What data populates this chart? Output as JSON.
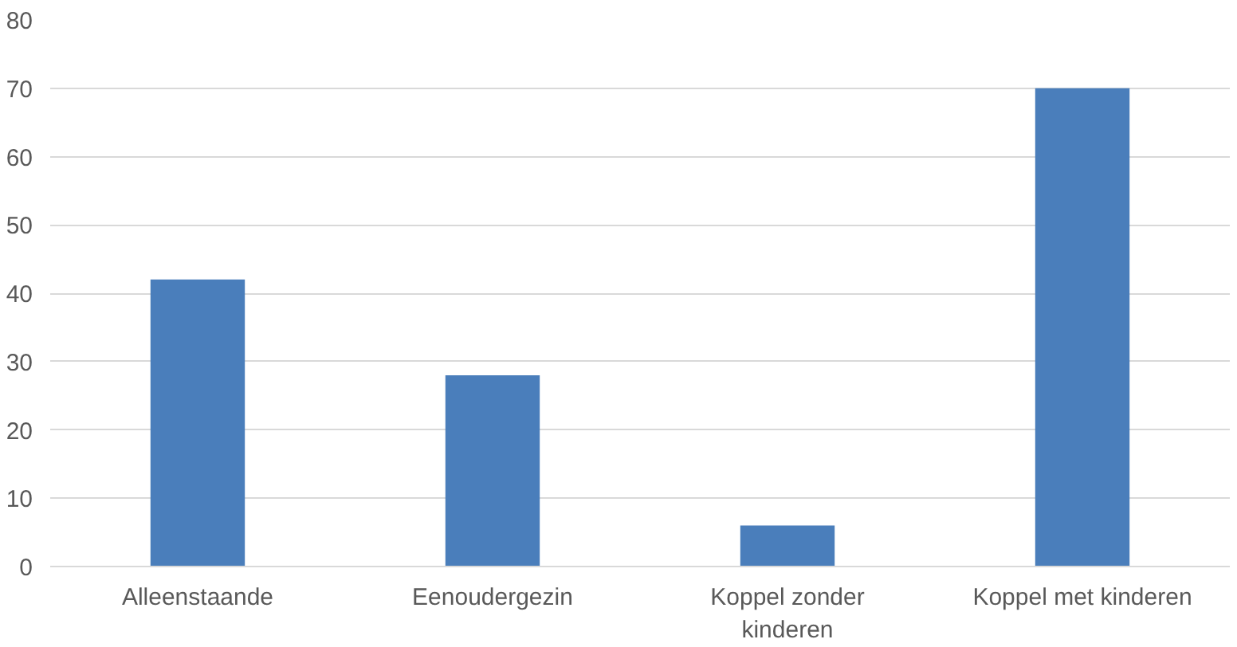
{
  "chart_data": {
    "type": "bar",
    "categories": [
      "Alleenstaande",
      "Eenoudergezin",
      "Koppel zonder kinderen",
      "Koppel met kinderen"
    ],
    "values": [
      42,
      28,
      6,
      70
    ],
    "color": "#4a7ebb",
    "ylim": [
      0,
      80
    ],
    "yticks": [
      0,
      10,
      20,
      30,
      40,
      50,
      60,
      70,
      80
    ],
    "grid": "y"
  }
}
